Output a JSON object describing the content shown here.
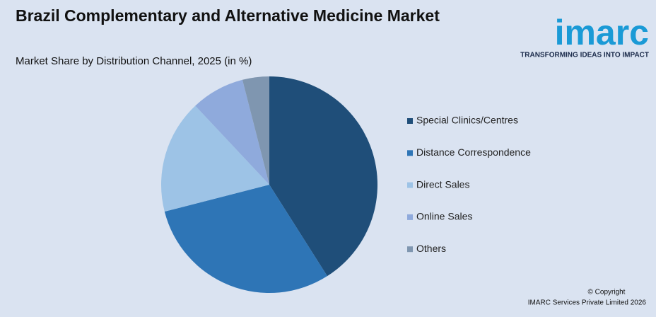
{
  "chart_data": {
    "type": "pie",
    "title": "Brazil Complementary and Alternative Medicine Market",
    "subtitle": "Market Share by Distribution Channel, 2025 (in %)",
    "categories": [
      "Special Clinics/Centres",
      "Distance Correspondence",
      "Direct Sales",
      "Online Sales",
      "Others"
    ],
    "values": [
      41,
      30,
      17,
      8,
      4
    ],
    "colors": [
      "#1f4e79",
      "#2e75b6",
      "#9dc3e6",
      "#8faadc",
      "#7f96b0"
    ],
    "legend": "right"
  },
  "logo": {
    "name": "imarc",
    "tagline": "TRANSFORMING IDEAS INTO IMPACT"
  },
  "footer": {
    "copyright": "© Copyright",
    "company": "IMARC Services Private Limited 2026"
  }
}
